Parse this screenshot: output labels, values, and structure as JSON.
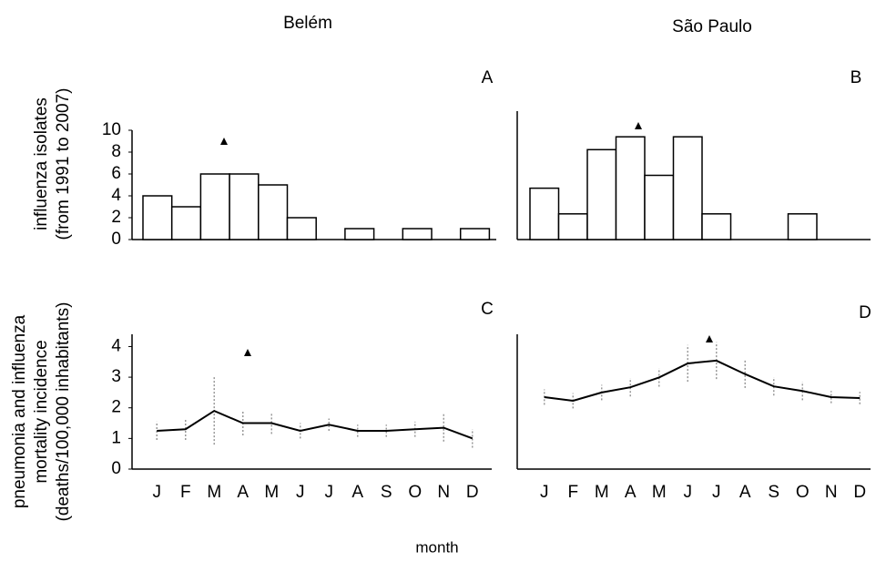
{
  "figure": {
    "columns": [
      "Belém",
      "São Paulo"
    ],
    "y_labels": [
      [
        "influenza isolates",
        "(from 1991 to 2007)"
      ],
      [
        "pneumonia and influenza",
        "mortality incidence",
        "(deaths/100,000 inhabitants)"
      ]
    ],
    "x_label": "month"
  },
  "chart_data": [
    {
      "type": "bar",
      "title": "A",
      "values": [
        4,
        3,
        6,
        6,
        5,
        2,
        0,
        1,
        0,
        1,
        0,
        1
      ],
      "color": "#ffffff",
      "ylim": [
        0,
        10
      ],
      "yticks": [
        0,
        2,
        4,
        6,
        8,
        10
      ]
    },
    {
      "type": "bar",
      "title": "B",
      "values": [
        4,
        2,
        7,
        8,
        5,
        8,
        2,
        0,
        0,
        2,
        0,
        0
      ],
      "color": "#ffffff",
      "ylim": [
        0,
        10
      ]
    },
    {
      "type": "line",
      "title": "C",
      "categories": [
        "J",
        "F",
        "M",
        "A",
        "M",
        "J",
        "J",
        "A",
        "S",
        "O",
        "N",
        "D"
      ],
      "values": [
        1.25,
        1.3,
        1.9,
        1.5,
        1.5,
        1.25,
        1.45,
        1.25,
        1.25,
        1.3,
        1.35,
        1.0
      ],
      "errors": [
        0.3,
        0.35,
        1.1,
        0.4,
        0.35,
        0.25,
        0.2,
        0.2,
        0.2,
        0.25,
        0.45,
        0.3
      ],
      "color": "#000000",
      "ylim": [
        0,
        4.4
      ],
      "yticks": [
        0,
        1,
        2,
        3,
        4
      ]
    },
    {
      "type": "line",
      "title": "D",
      "categories": [
        "J",
        "F",
        "M",
        "A",
        "M",
        "J",
        "J",
        "A",
        "S",
        "O",
        "N",
        "D"
      ],
      "values": [
        2.35,
        2.23,
        2.5,
        2.67,
        2.99,
        3.45,
        3.54,
        3.1,
        2.7,
        2.55,
        2.35,
        2.32
      ],
      "errors": [
        0.25,
        0.25,
        0.25,
        0.3,
        0.3,
        0.6,
        0.6,
        0.45,
        0.3,
        0.3,
        0.2,
        0.2
      ],
      "color": "#000000",
      "ylim": [
        0,
        4.4
      ]
    }
  ]
}
